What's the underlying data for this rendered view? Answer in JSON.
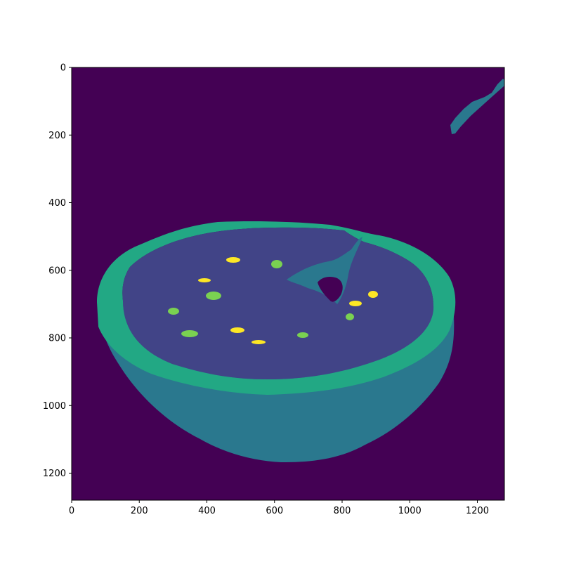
{
  "figure": {
    "type": "segmentation-mask-image",
    "colormap": "viridis",
    "background": "#ffffff"
  },
  "axes": {
    "x_range": [
      0,
      1280
    ],
    "y_range": [
      0,
      1280
    ],
    "y_inverted": true,
    "x_ticks": [
      0,
      200,
      400,
      600,
      800,
      1000,
      1200
    ],
    "y_ticks": [
      0,
      200,
      400,
      600,
      800,
      1000,
      1200
    ],
    "x_tick_labels": [
      "0",
      "200",
      "400",
      "600",
      "800",
      "1000",
      "1200"
    ],
    "y_tick_labels": [
      "0",
      "200",
      "400",
      "600",
      "800",
      "1000",
      "1200"
    ]
  },
  "colors": {
    "class_0_background": "#440154",
    "class_1_soup_surface": "#414487",
    "class_2_bowl_and_utensil": "#2a788e",
    "class_3_bowl_rim": "#22a884",
    "class_4_green_garnish": "#7ad151",
    "class_5_yellow_garnish": "#fde725"
  }
}
